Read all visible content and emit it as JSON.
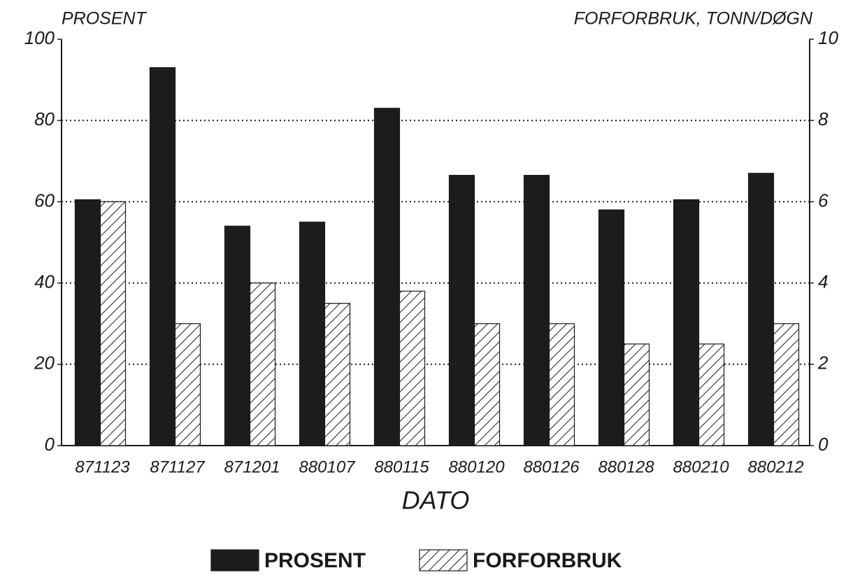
{
  "chart_data": {
    "type": "bar",
    "y_title": "PROSENT",
    "y2_title": "FORFORBRUK, TONN/DØGN",
    "x_title": "DATO",
    "categories": [
      "871123",
      "871127",
      "871201",
      "880107",
      "880115",
      "880120",
      "880126",
      "880128",
      "880210",
      "880212"
    ],
    "series": [
      {
        "name": "PROSENT",
        "color": "#1c1c1c",
        "values": [
          60.5,
          93,
          54,
          55,
          83,
          66.5,
          66.5,
          58,
          60.5,
          67
        ]
      },
      {
        "name": "FORFORBRUK",
        "color": "#ffffff",
        "hatch": true,
        "axis": "y2",
        "values": [
          6,
          3,
          4,
          3.5,
          3.8,
          3,
          3,
          2.5,
          2.5,
          3
        ]
      }
    ],
    "ylim": [
      0,
      100
    ],
    "yticks": [
      0,
      20,
      40,
      60,
      80,
      100
    ],
    "y2lim": [
      0,
      10
    ],
    "y2ticks": [
      0,
      2,
      4,
      6,
      8,
      10
    ],
    "grid": true
  }
}
